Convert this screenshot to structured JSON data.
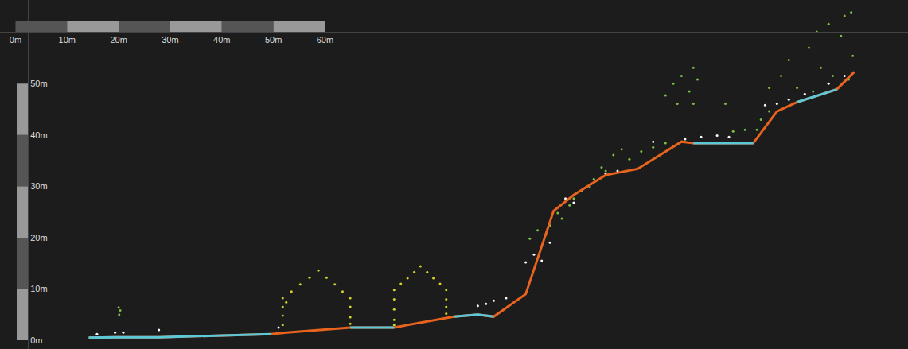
{
  "chart_data": {
    "type": "scatter",
    "xlim": [
      -3,
      173
    ],
    "ylim": [
      -1.7,
      66.3
    ],
    "xticks": [
      {
        "value": 0,
        "label": "0m"
      },
      {
        "value": 10,
        "label": "10m"
      },
      {
        "value": 20,
        "label": "20m"
      },
      {
        "value": 30,
        "label": "30m"
      },
      {
        "value": 40,
        "label": "40m"
      },
      {
        "value": 50,
        "label": "50m"
      },
      {
        "value": 60,
        "label": "60m"
      }
    ],
    "yticks": [
      {
        "value": 0,
        "label": "0m"
      },
      {
        "value": 10,
        "label": "10m"
      },
      {
        "value": 20,
        "label": "20m"
      },
      {
        "value": 30,
        "label": "30m"
      },
      {
        "value": 40,
        "label": "40m"
      },
      {
        "value": 50,
        "label": "50m"
      }
    ],
    "grid": false,
    "series": [
      {
        "type": "scatter",
        "color": "#7cc142",
        "marker": "circle",
        "x": [
          20.1,
          20.3,
          20.0,
          99.7,
          101.2,
          103.6,
          105.9,
          102.8,
          105.1,
          107.4,
          109.7,
          112.1,
          113.6,
          115.9,
          117.5,
          119.0,
          121.3,
          123.6,
          126.0,
          114.4,
          111.3,
          108.2,
          126.0,
          127.5,
          129.1,
          131.4,
          130.6,
          128.3,
          132.2,
          131.4,
          137.6,
          139.1,
          141.4,
          143.7,
          144.5,
          146.1,
          146.1,
          148.4,
          149.9,
          151.5,
          153.8,
          155.3,
          157.6,
          160.0,
          160.7,
          162.3,
          158.4,
          156.1,
          154.6,
          161.5,
          162.0
        ],
        "values": [
          5.0,
          5.8,
          6.4,
          19.8,
          21.4,
          22.4,
          23.7,
          20.6,
          24.8,
          26.3,
          29.1,
          31.4,
          33.7,
          36.1,
          37.2,
          35.3,
          36.8,
          37.6,
          38.4,
          33.0,
          29.9,
          27.6,
          47.7,
          50.0,
          51.5,
          53.1,
          48.5,
          46.1,
          50.8,
          46.1,
          46.1,
          40.7,
          41.0,
          41.0,
          43.0,
          44.6,
          49.2,
          51.5,
          54.6,
          49.2,
          57.0,
          60.1,
          61.6,
          59.3,
          63.2,
          55.4,
          51.5,
          53.1,
          48.5,
          50.8,
          63.9
        ]
      },
      {
        "type": "scatter",
        "color": "#d4d42a",
        "marker": "circle",
        "x": [
          51.8,
          53.5,
          55.2,
          57.0,
          58.7,
          60.3,
          61.9,
          63.4,
          64.9,
          51.8,
          51.8,
          51.8,
          52.5,
          64.9,
          64.9,
          64.9,
          73.4,
          74.7,
          76.0,
          77.3,
          78.5,
          79.8,
          81.0,
          82.3,
          83.5,
          73.4,
          73.4,
          73.4,
          73.4,
          83.5,
          83.5,
          83.5
        ],
        "values": [
          8.2,
          9.5,
          10.9,
          12.2,
          13.6,
          12.2,
          10.9,
          9.5,
          8.2,
          6.5,
          4.8,
          3.0,
          7.4,
          6.5,
          4.5,
          3.2,
          9.8,
          11.0,
          12.1,
          13.3,
          14.4,
          13.3,
          12.1,
          11.0,
          9.8,
          8.0,
          6.0,
          4.0,
          3.0,
          8.0,
          6.5,
          5.2
        ]
      },
      {
        "type": "scatter",
        "color": "#ffffff",
        "marker": "circle",
        "x": [
          15.8,
          19.3,
          20.9,
          27.8,
          98.9,
          100.5,
          102.0,
          103.6,
          106.6,
          108.2,
          111.3,
          114.4,
          116.7,
          91.2,
          92.7,
          95.1,
          89.6,
          123.6,
          129.8,
          132.9,
          136.0,
          138.3,
          145.3,
          147.6,
          149.9,
          153.0,
          157.6,
          160.7,
          51.0
        ],
        "values": [
          1.2,
          1.5,
          1.5,
          2.0,
          15.2,
          16.7,
          15.5,
          19.0,
          27.6,
          26.8,
          30.3,
          32.5,
          33.0,
          7.1,
          7.7,
          8.2,
          6.7,
          38.7,
          39.2,
          39.6,
          39.9,
          39.6,
          45.8,
          46.1,
          46.9,
          48.0,
          50.0,
          51.5,
          2.5
        ]
      },
      {
        "type": "line",
        "color": "#e8641e",
        "line_style": "solid",
        "x": [
          14.2,
          19.3,
          27.8,
          49.5,
          52.6,
          64.9,
          73.4,
          85.0,
          89.6,
          92.7,
          98.9,
          104.3,
          108.2,
          114.4,
          120.6,
          129.1,
          131.4,
          143.0,
          147.6,
          151.5,
          159.2,
          162.6
        ],
        "values": [
          0.5,
          0.6,
          0.6,
          1.2,
          1.5,
          2.5,
          2.5,
          4.6,
          5.0,
          4.6,
          9.0,
          25.2,
          28.3,
          32.2,
          33.4,
          38.7,
          38.4,
          38.4,
          44.6,
          46.4,
          48.9,
          52.3
        ]
      },
      {
        "type": "line",
        "color": "#5bc8d8",
        "line_style": "solid",
        "x": [
          14.2,
          19.3,
          27.8,
          49.5,
          52.6,
          64.9,
          73.4,
          80.0,
          85.0,
          89.6,
          92.7,
          110.0,
          131.4,
          143.0,
          147.0,
          151.5,
          159.2
        ],
        "values": [
          0.5,
          0.6,
          0.6,
          1.2,
          null,
          2.5,
          2.5,
          null,
          4.6,
          5.0,
          4.6,
          null,
          38.4,
          38.4,
          null,
          46.4,
          48.9
        ]
      }
    ]
  }
}
